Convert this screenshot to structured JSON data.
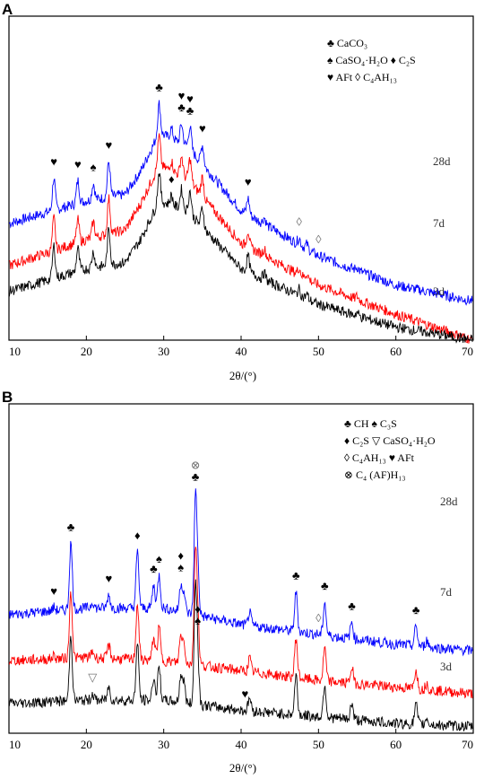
{
  "chart_data": [
    {
      "type": "line",
      "panel": "A",
      "xlabel": "2θ/(°)",
      "xlim": [
        10,
        70
      ],
      "x_ticks": [
        "10",
        "20",
        "30",
        "40",
        "50",
        "60",
        "70"
      ],
      "legend": [
        "♣ CaCO₃",
        "♠ CaSO₄·H₂O ♦ C₂S",
        "♥ AFt ◊ C₄AH₁₃"
      ],
      "series": [
        {
          "name": "28d",
          "color": "#0000ff",
          "baseline": [
            [
              10,
              36
            ],
            [
              20,
              43
            ],
            [
              25,
              45
            ],
            [
              27,
              52
            ],
            [
              29.4,
              64
            ],
            [
              33,
              60
            ],
            [
              40,
              40
            ],
            [
              50,
              26
            ],
            [
              60,
              17
            ],
            [
              70,
              12
            ]
          ]
        },
        {
          "name": "7d",
          "color": "#ff0000",
          "baseline": [
            [
              10,
              23
            ],
            [
              20,
              31
            ],
            [
              25,
              34
            ],
            [
              27,
              42
            ],
            [
              29.4,
              54
            ],
            [
              33,
              50
            ],
            [
              40,
              30
            ],
            [
              50,
              17
            ],
            [
              60,
              8
            ],
            [
              70,
              0
            ]
          ]
        },
        {
          "name": "3d",
          "color": "#000000",
          "baseline": [
            [
              10,
              15
            ],
            [
              20,
              22
            ],
            [
              25,
              24
            ],
            [
              27,
              31
            ],
            [
              29.4,
              43
            ],
            [
              33,
              40
            ],
            [
              40,
              22
            ],
            [
              50,
              11
            ],
            [
              60,
              4
            ],
            [
              70,
              0
            ]
          ]
        }
      ],
      "peaks": [
        {
          "x": 15.8,
          "h": 10
        },
        {
          "x": 18.9,
          "h": 7
        },
        {
          "x": 20.9,
          "h": 5
        },
        {
          "x": 22.9,
          "h": 11
        },
        {
          "x": 29.4,
          "h": 9
        },
        {
          "x": 31.0,
          "h": 3
        },
        {
          "x": 32.3,
          "h": 6
        },
        {
          "x": 33.4,
          "h": 7
        },
        {
          "x": 35.0,
          "h": 6
        },
        {
          "x": 40.9,
          "h": 5
        },
        {
          "x": 43.0,
          "h": 2
        },
        {
          "x": 47.5,
          "h": 2
        },
        {
          "x": 48.5,
          "h": 1.5
        },
        {
          "x": 55.0,
          "h": 1
        }
      ],
      "annotations": [
        {
          "symbol": "♥",
          "x": 15.8
        },
        {
          "symbol": "♥",
          "x": 18.9
        },
        {
          "symbol": "♠",
          "x": 20.9
        },
        {
          "symbol": "♥",
          "x": 22.9
        },
        {
          "symbol": "♣",
          "x": 29.4
        },
        {
          "symbol": "♣",
          "x": 32.3
        },
        {
          "symbol": "♥",
          "x": 32.3
        },
        {
          "symbol": "♣",
          "x": 33.4
        },
        {
          "symbol": "♥",
          "x": 33.4
        },
        {
          "symbol": "♥",
          "x": 35.0
        },
        {
          "symbol": "♥",
          "x": 40.9
        },
        {
          "symbol": "◊",
          "x": 47.5
        },
        {
          "symbol": "◊",
          "x": 50.0
        },
        {
          "symbol": "♦",
          "x": 31.0
        }
      ]
    },
    {
      "type": "line",
      "panel": "B",
      "xlabel": "2θ/(°)",
      "xlim": [
        10,
        70
      ],
      "x_ticks": [
        "10",
        "20",
        "30",
        "40",
        "50",
        "60",
        "70"
      ],
      "legend": [
        "♣ CH ♠ C₃S",
        "♦ C₂S ▽ CaSO₄·H₂O",
        "◊ C₄AH₁₃ ♥ AFt",
        "⊗ C₄ (AF)H₁₃"
      ],
      "series": [
        {
          "name": "28d",
          "color": "#0000ff",
          "baseline": [
            [
              10,
              36
            ],
            [
              20,
              38
            ],
            [
              30,
              38
            ],
            [
              40,
              33
            ],
            [
              50,
              30
            ],
            [
              60,
              27
            ],
            [
              70,
              25
            ]
          ]
        },
        {
          "name": "7d",
          "color": "#ff0000",
          "baseline": [
            [
              10,
              22
            ],
            [
              20,
              23
            ],
            [
              30,
              22
            ],
            [
              40,
              19
            ],
            [
              50,
              16
            ],
            [
              60,
              14
            ],
            [
              70,
              12
            ]
          ]
        },
        {
          "name": "3d",
          "color": "#000000",
          "baseline": [
            [
              10,
              9
            ],
            [
              20,
              10
            ],
            [
              30,
              10
            ],
            [
              40,
              7
            ],
            [
              50,
              5
            ],
            [
              60,
              3
            ],
            [
              70,
              2
            ]
          ]
        }
      ],
      "peaks": [
        {
          "x": 15.8,
          "h": 1
        },
        {
          "x": 18.0,
          "h": 20
        },
        {
          "x": 20.8,
          "h": 2
        },
        {
          "x": 22.9,
          "h": 4
        },
        {
          "x": 26.6,
          "h": 17
        },
        {
          "x": 28.7,
          "h": 7
        },
        {
          "x": 29.4,
          "h": 10
        },
        {
          "x": 32.2,
          "h": 8
        },
        {
          "x": 32.6,
          "h": 6
        },
        {
          "x": 34.1,
          "h": 34
        },
        {
          "x": 34.4,
          "h": 12
        },
        {
          "x": 41.1,
          "h": 4
        },
        {
          "x": 47.1,
          "h": 12
        },
        {
          "x": 50.8,
          "h": 10
        },
        {
          "x": 54.3,
          "h": 5
        },
        {
          "x": 62.6,
          "h": 6
        },
        {
          "x": 64.0,
          "h": 2
        }
      ],
      "annotations": [
        {
          "symbol": "♥",
          "x": 15.8
        },
        {
          "symbol": "♣",
          "x": 18.0
        },
        {
          "symbol": "♥",
          "x": 22.9
        },
        {
          "symbol": "♦",
          "x": 26.6
        },
        {
          "symbol": "♣",
          "x": 28.7
        },
        {
          "symbol": "♠",
          "x": 29.4
        },
        {
          "symbol": "♠",
          "x": 32.2
        },
        {
          "symbol": "♦",
          "x": 32.2
        },
        {
          "symbol": "♣",
          "x": 34.1
        },
        {
          "symbol": "⊗",
          "x": 34.1
        },
        {
          "symbol": "♣",
          "x": 47.1
        },
        {
          "symbol": "◊",
          "x": 50.0
        },
        {
          "symbol": "♣",
          "x": 50.8
        },
        {
          "symbol": "♣",
          "x": 54.3
        },
        {
          "symbol": "♣",
          "x": 62.6
        },
        {
          "symbol": "▽",
          "x": 20.8
        },
        {
          "symbol": "♠",
          "x": 34.4
        },
        {
          "symbol": "♦",
          "x": 34.4
        },
        {
          "symbol": "♥",
          "x": 40.5
        }
      ]
    }
  ]
}
